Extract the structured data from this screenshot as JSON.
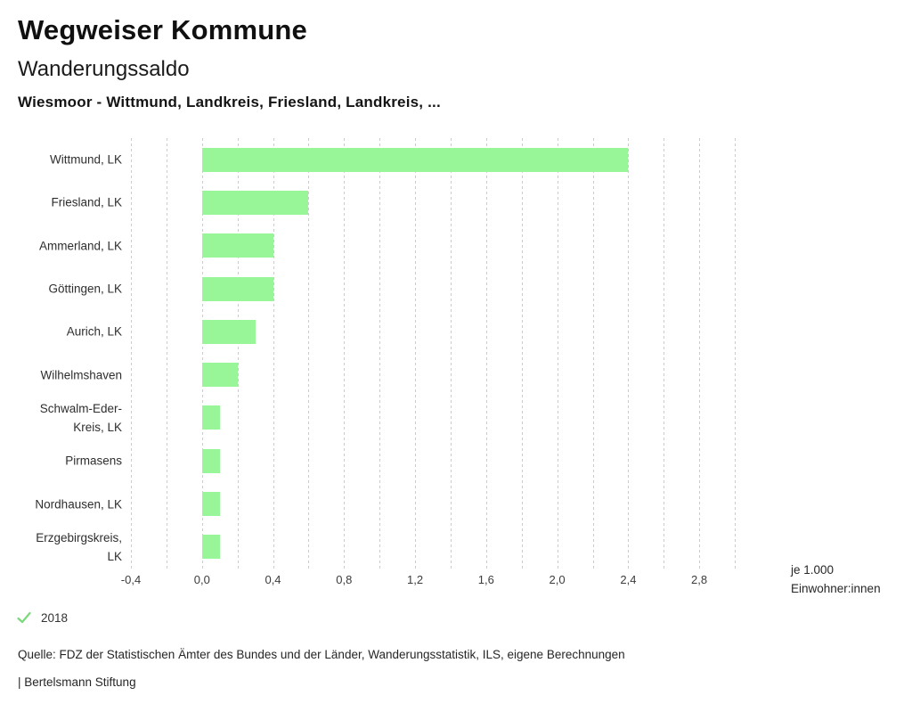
{
  "header": {
    "app_title": "Wegweiser Kommune",
    "chart_title": "Wanderungssaldo",
    "comparison_subtitle": "Wiesmoor - Wittmund, Landkreis, Friesland, Landkreis, ..."
  },
  "chart_data": {
    "type": "bar",
    "orientation": "horizontal",
    "title": "Wanderungssaldo",
    "subtitle": "Wiesmoor - Wittmund, Landkreis, Friesland, Landkreis, ...",
    "xlabel": "je 1.000 Einwohner:innen",
    "ylabel": "",
    "grid": "vertical-dashed",
    "legend_position": "bottom-left",
    "axis": {
      "min": -0.4,
      "max": 3.0,
      "grid_step": 0.2,
      "tick_values": [
        -0.4,
        0.0,
        0.4,
        0.8,
        1.2,
        1.6,
        2.0,
        2.4,
        2.8
      ],
      "tick_labels": [
        "-0,4",
        "0,0",
        "0,4",
        "0,8",
        "1,2",
        "1,6",
        "2,0",
        "2,4",
        "2,8"
      ]
    },
    "unit_note_lines": [
      "je 1.000",
      "Einwohner:innen"
    ],
    "series": [
      {
        "name": "2018",
        "values": [
          2.4,
          0.6,
          0.4,
          0.4,
          0.3,
          0.2,
          0.1,
          0.1,
          0.1,
          0.1
        ]
      }
    ],
    "categories": [
      "Wittmund, LK",
      "Friesland, LK",
      "Ammerland, LK",
      "Göttingen, LK",
      "Aurich, LK",
      "Wilhelmshaven",
      "Schwalm-Eder-Kreis, LK",
      "Pirmasens",
      "Nordhausen, LK",
      "Erzgebirgskreis, LK"
    ],
    "category_label_lines": [
      [
        "Wittmund, LK"
      ],
      [
        "Friesland, LK"
      ],
      [
        "Ammerland, LK"
      ],
      [
        "Göttingen, LK"
      ],
      [
        "Aurich, LK"
      ],
      [
        "Wilhelmshaven"
      ],
      [
        "Schwalm-Eder-",
        "Kreis, LK"
      ],
      [
        "Pirmasens"
      ],
      [
        "Nordhausen, LK"
      ],
      [
        "Erzgebirgskreis,",
        "LK"
      ]
    ]
  },
  "legend": {
    "year": "2018",
    "check_icon": "check-icon"
  },
  "footer": {
    "source": "Quelle: FDZ der Statistischen Ämter des Bundes und der Länder, Wanderungsstatistik, ILS, eigene Berechnungen",
    "brand": "| Bertelsmann Stiftung"
  },
  "colors": {
    "bar": "#98f598",
    "grid": "#cccccc",
    "check": "#7bd87b",
    "title_text": "#101010",
    "body_text": "#262626"
  }
}
